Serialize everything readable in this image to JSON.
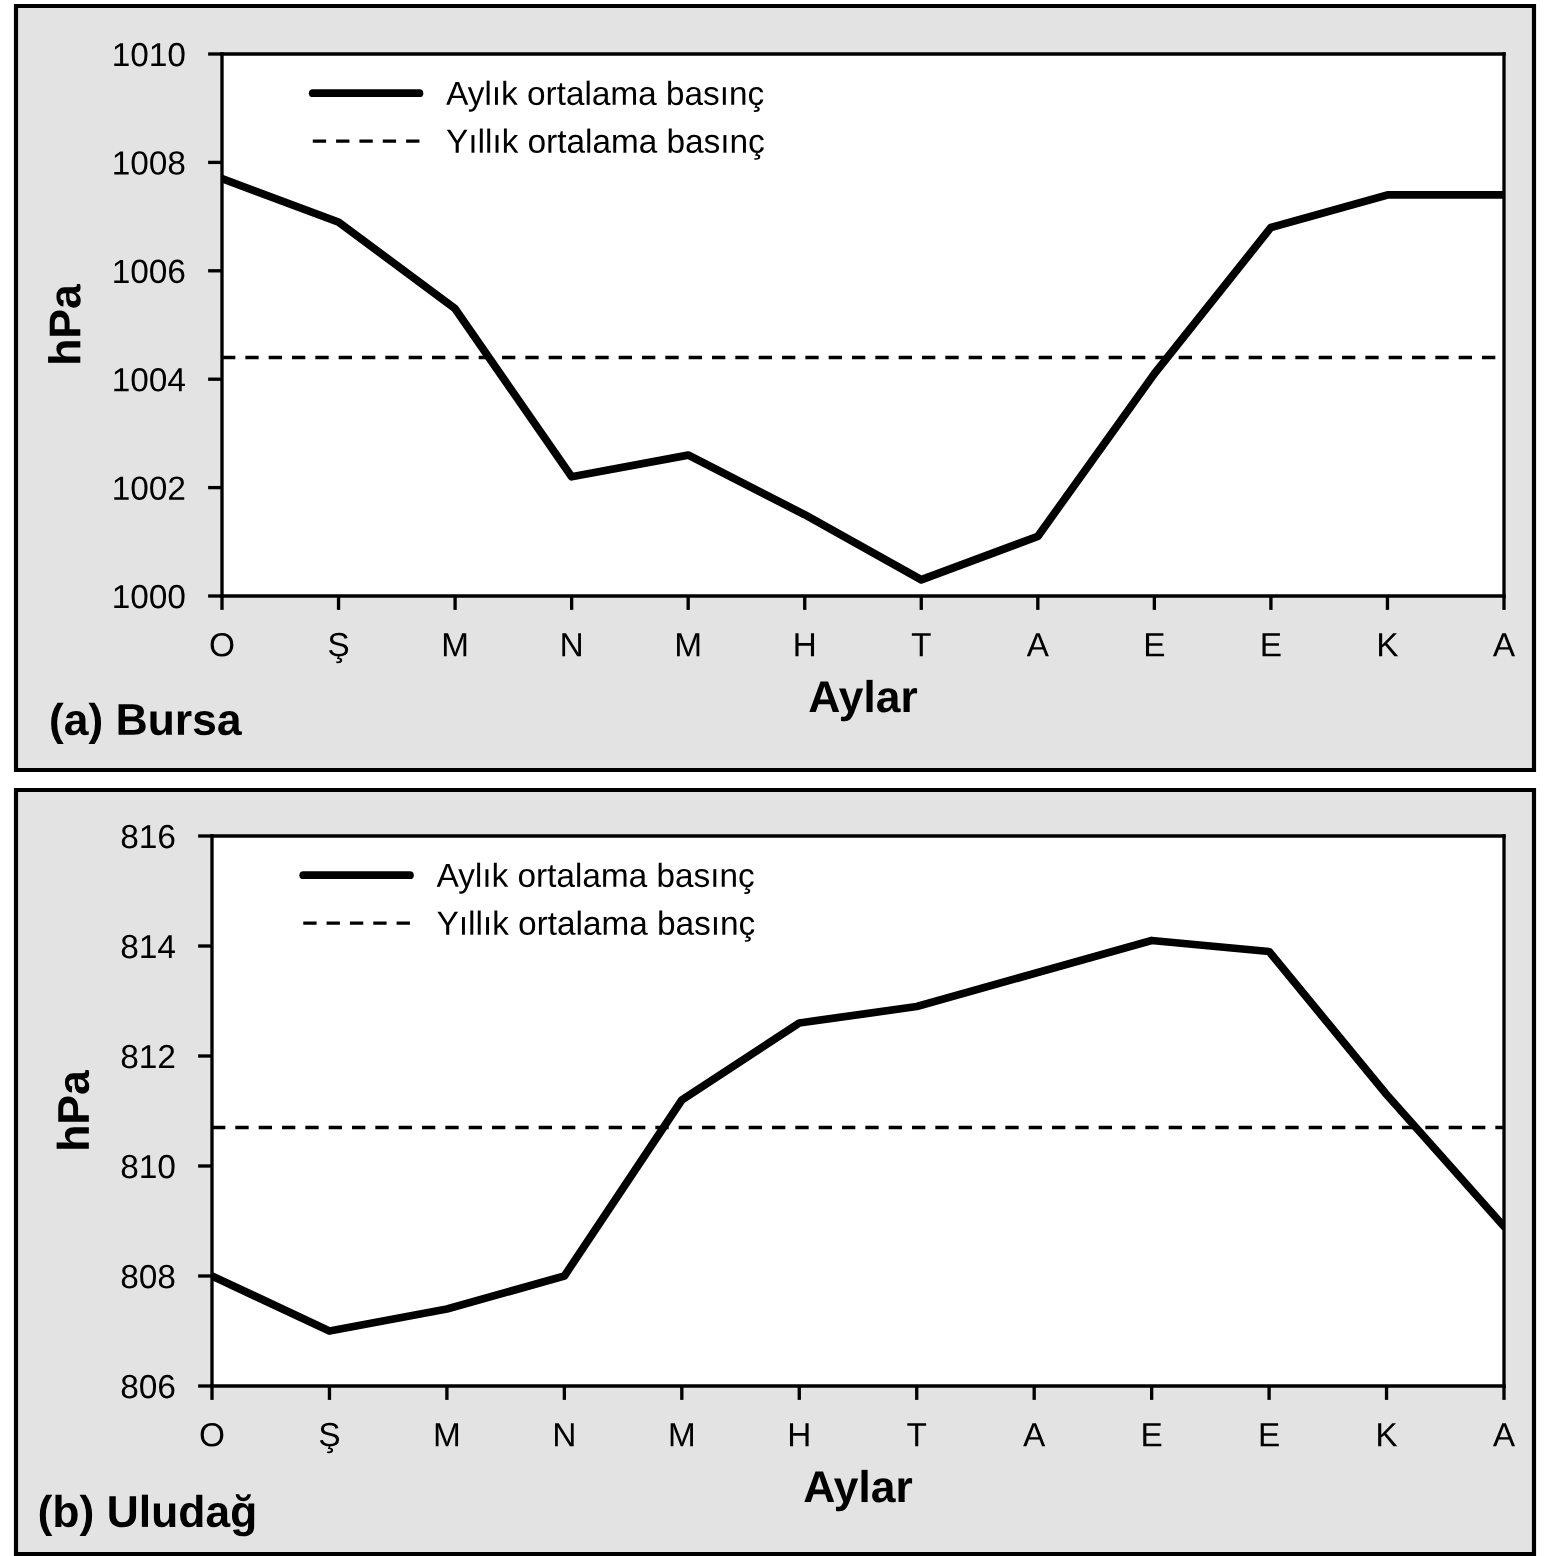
{
  "chart_data": [
    {
      "type": "line",
      "title": "(a) Bursa",
      "xlabel": "Aylar",
      "ylabel": "hPa",
      "categories": [
        "O",
        "Ş",
        "M",
        "N",
        "M",
        "H",
        "T",
        "A",
        "E",
        "E",
        "K",
        "A"
      ],
      "series": [
        {
          "name": "Aylık ortalama basınç",
          "color": "#000000",
          "values": [
            1007.7,
            1006.9,
            1005.3,
            1002.2,
            1002.6,
            1001.5,
            1000.3,
            1001.1,
            1004.1,
            1006.8,
            1007.4,
            1007.4
          ]
        }
      ],
      "ref_lines": [
        {
          "axis": "y",
          "value": 1004.4,
          "label": "Yıllık ortalama basınç",
          "color": "#000000",
          "line_style": "dashed"
        }
      ],
      "ylim": [
        1000,
        1010
      ],
      "yticks": [
        1000,
        1002,
        1004,
        1006,
        1008,
        1010
      ],
      "grid": false,
      "legend": "top left",
      "marker": "none",
      "line_style": "solid"
    },
    {
      "type": "line",
      "title": "(b) Uludağ",
      "xlabel": "Aylar",
      "ylabel": "hPa",
      "categories": [
        "O",
        "Ş",
        "M",
        "N",
        "M",
        "H",
        "T",
        "A",
        "E",
        "E",
        "K",
        "A"
      ],
      "series": [
        {
          "name": "Aylık ortalama basınç",
          "color": "#000000",
          "values": [
            808.0,
            807.0,
            807.4,
            808.0,
            811.2,
            812.6,
            812.9,
            813.5,
            814.1,
            813.9,
            811.3,
            808.9
          ]
        }
      ],
      "ref_lines": [
        {
          "axis": "y",
          "value": 810.7,
          "label": "Yıllık ortalama basınç",
          "color": "#000000",
          "line_style": "dashed"
        }
      ],
      "ylim": [
        806,
        816
      ],
      "yticks": [
        806,
        808,
        810,
        812,
        814,
        816
      ],
      "grid": false,
      "legend": "top left",
      "marker": "none",
      "line_style": "solid"
    }
  ]
}
